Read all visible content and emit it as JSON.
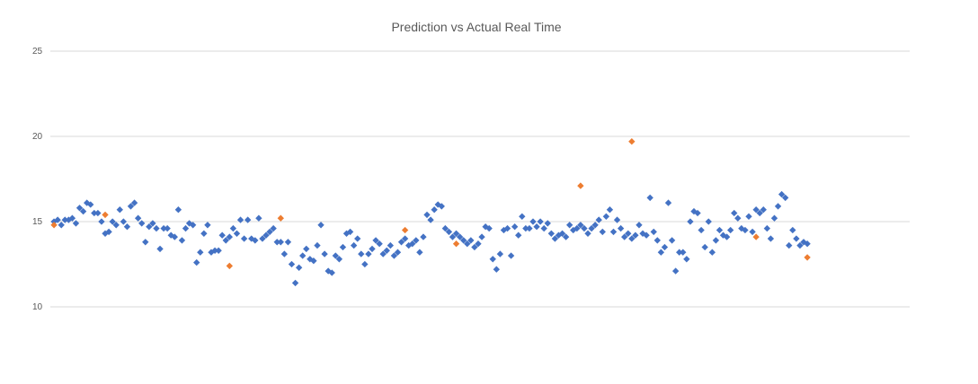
{
  "chart_data": {
    "type": "scatter",
    "title": "Prediction vs Actual Real Time",
    "xlabel": "",
    "ylabel": "",
    "xlim": [
      0,
      235
    ],
    "ylim": [
      10,
      25
    ],
    "yticks": [
      10,
      15,
      20,
      25
    ],
    "grid": true,
    "legend": "none",
    "colors": {
      "series1": "#4472C4",
      "series2": "#ED7D31"
    },
    "series": [
      {
        "values": [
          15.0,
          15.1,
          14.8,
          15.1,
          15.1,
          15.2,
          14.9,
          15.8,
          15.6,
          16.1,
          16.0,
          15.5,
          15.5,
          15.0,
          14.3,
          14.4,
          15.0,
          14.8,
          15.7,
          15.0,
          14.7,
          15.9,
          16.1,
          15.2,
          14.9,
          13.8,
          14.7,
          14.9,
          14.6,
          13.4,
          14.6,
          14.6,
          14.2,
          14.1,
          15.7,
          13.9,
          14.6,
          14.9,
          14.8,
          12.6,
          13.2,
          14.3,
          14.8,
          13.2,
          13.3,
          13.3,
          14.2,
          13.9,
          14.1,
          14.6,
          14.3,
          15.1,
          14.0,
          15.1,
          14.0,
          13.9,
          15.2,
          14.0,
          14.2,
          14.4,
          14.6,
          13.8,
          13.8,
          13.1,
          13.8,
          12.5,
          11.4,
          12.3,
          13.0,
          13.4,
          12.8,
          12.7,
          13.6,
          14.8,
          13.1,
          12.1,
          12.0,
          13.0,
          12.8,
          13.5,
          14.3,
          14.4,
          13.6,
          14.0,
          13.1,
          12.5,
          13.1,
          13.4,
          13.9,
          13.7,
          13.1,
          13.3,
          13.6,
          13.0,
          13.2,
          13.8,
          14.0,
          13.6,
          13.7,
          13.9,
          13.2,
          14.1,
          15.4,
          15.1,
          15.7,
          16.0,
          15.9,
          14.6,
          14.4,
          14.1,
          14.3,
          14.1,
          13.9,
          13.7,
          13.9,
          13.5,
          13.7,
          14.1,
          14.7,
          14.6,
          12.8,
          12.2,
          13.1,
          14.5,
          14.6,
          13.0,
          14.7,
          14.2,
          15.3,
          14.6,
          14.6,
          15.0,
          14.7,
          15.0,
          14.6,
          14.9,
          14.3,
          14.0,
          14.2,
          14.3,
          14.1,
          14.8,
          14.5,
          14.6,
          14.8,
          14.6,
          14.3,
          14.6,
          14.8,
          15.1,
          14.4,
          15.3,
          15.7,
          14.4,
          15.1,
          14.6,
          14.1,
          14.3,
          14.0,
          14.2,
          14.8,
          14.3,
          14.2,
          16.4,
          14.4,
          13.9,
          13.2,
          13.5,
          16.1,
          13.9,
          12.1,
          13.2,
          13.2,
          12.8,
          15.0,
          15.6,
          15.5,
          14.5,
          13.5,
          15.0,
          13.2,
          13.9,
          14.5,
          14.2,
          14.1,
          14.5,
          15.5,
          15.2,
          14.6,
          14.5,
          15.3,
          14.4,
          15.7,
          15.5,
          15.7,
          14.6,
          14.0,
          15.2,
          15.9,
          16.6,
          16.4,
          13.6,
          14.5,
          14.0,
          13.6,
          13.8,
          13.7
        ],
        "x_start": 1
      },
      {
        "points": [
          [
            1,
            14.8
          ],
          [
            15,
            15.4
          ],
          [
            49,
            12.4
          ],
          [
            63,
            15.2
          ],
          [
            97,
            14.5
          ],
          [
            111,
            13.7
          ],
          [
            145,
            17.1
          ],
          [
            159,
            19.7
          ],
          [
            193,
            14.1
          ],
          [
            207,
            12.9
          ]
        ]
      }
    ]
  }
}
